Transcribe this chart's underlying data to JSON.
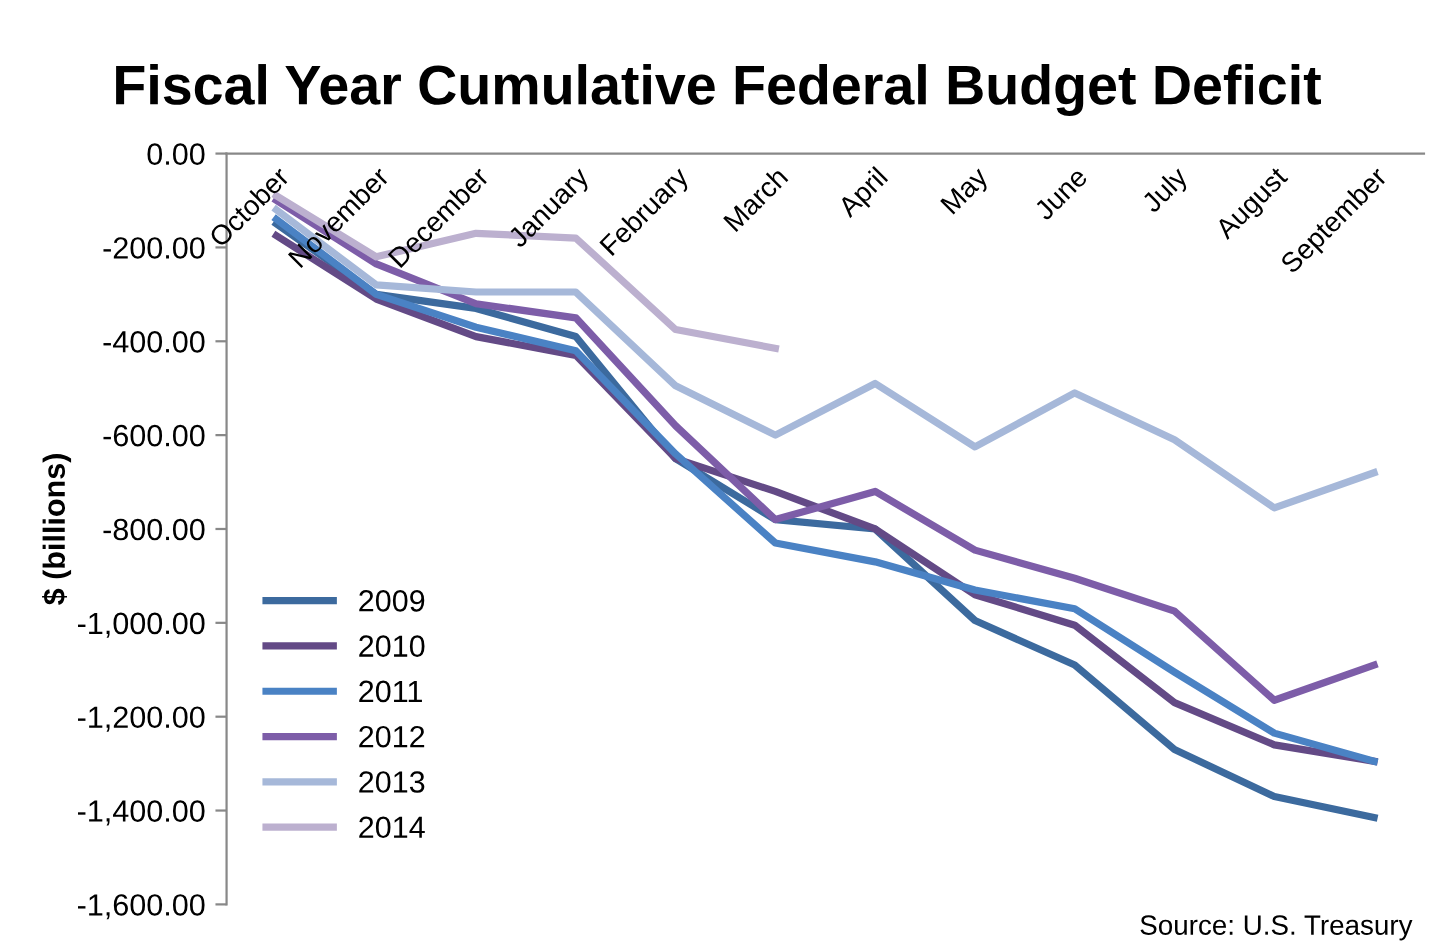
{
  "chart_data": {
    "type": "line",
    "title": "Fiscal Year Cumulative Federal Budget Deficit",
    "ylabel": "$ (billions)",
    "categories": [
      "October",
      "November",
      "December",
      "January",
      "February",
      "March",
      "April",
      "May",
      "June",
      "July",
      "August",
      "September"
    ],
    "series": [
      {
        "name": "2009",
        "color": "#3c6a9e",
        "values": [
          -150,
          -300,
          -330,
          -390,
          -650,
          -780,
          -800,
          -995,
          -1090,
          -1270,
          -1370,
          -1415
        ]
      },
      {
        "name": "2010",
        "color": "#634a86",
        "values": [
          -175,
          -310,
          -390,
          -430,
          -650,
          -720,
          -800,
          -940,
          -1005,
          -1170,
          -1260,
          -1295
        ]
      },
      {
        "name": "2011",
        "color": "#4a82c4",
        "values": [
          -140,
          -300,
          -370,
          -420,
          -640,
          -830,
          -870,
          -930,
          -970,
          -1105,
          -1235,
          -1295
        ]
      },
      {
        "name": "2012",
        "color": "#7d5da8",
        "values": [
          -100,
          -235,
          -320,
          -350,
          -580,
          -780,
          -720,
          -845,
          -905,
          -975,
          -1165,
          -1090
        ]
      },
      {
        "name": "2013",
        "color": "#a6b8d9",
        "values": [
          -120,
          -280,
          -295,
          -295,
          -495,
          -600,
          -490,
          -625,
          -510,
          -610,
          -755,
          -680
        ]
      },
      {
        "name": "2014",
        "color": "#bcb0cf",
        "values": [
          -90,
          -220,
          -170,
          -180,
          -375,
          -415,
          null,
          null,
          null,
          null,
          null,
          null
        ]
      }
    ],
    "ylim": [
      -1600,
      0
    ],
    "yticks": [
      {
        "value": 0,
        "label": "0.00"
      },
      {
        "value": -200,
        "label": "-200.00"
      },
      {
        "value": -400,
        "label": "-400.00"
      },
      {
        "value": -600,
        "label": "-600.00"
      },
      {
        "value": -800,
        "label": "-800.00"
      },
      {
        "value": -1000,
        "label": "-1,000.00"
      },
      {
        "value": -1200,
        "label": "-1,200.00"
      },
      {
        "value": -1400,
        "label": "-1,400.00"
      },
      {
        "value": -1600,
        "label": "-1,600.00"
      }
    ],
    "grid": false,
    "legend": "left",
    "marker": "none",
    "line_style": "solid",
    "annotations": [
      "Source: U.S. Treasury"
    ]
  }
}
